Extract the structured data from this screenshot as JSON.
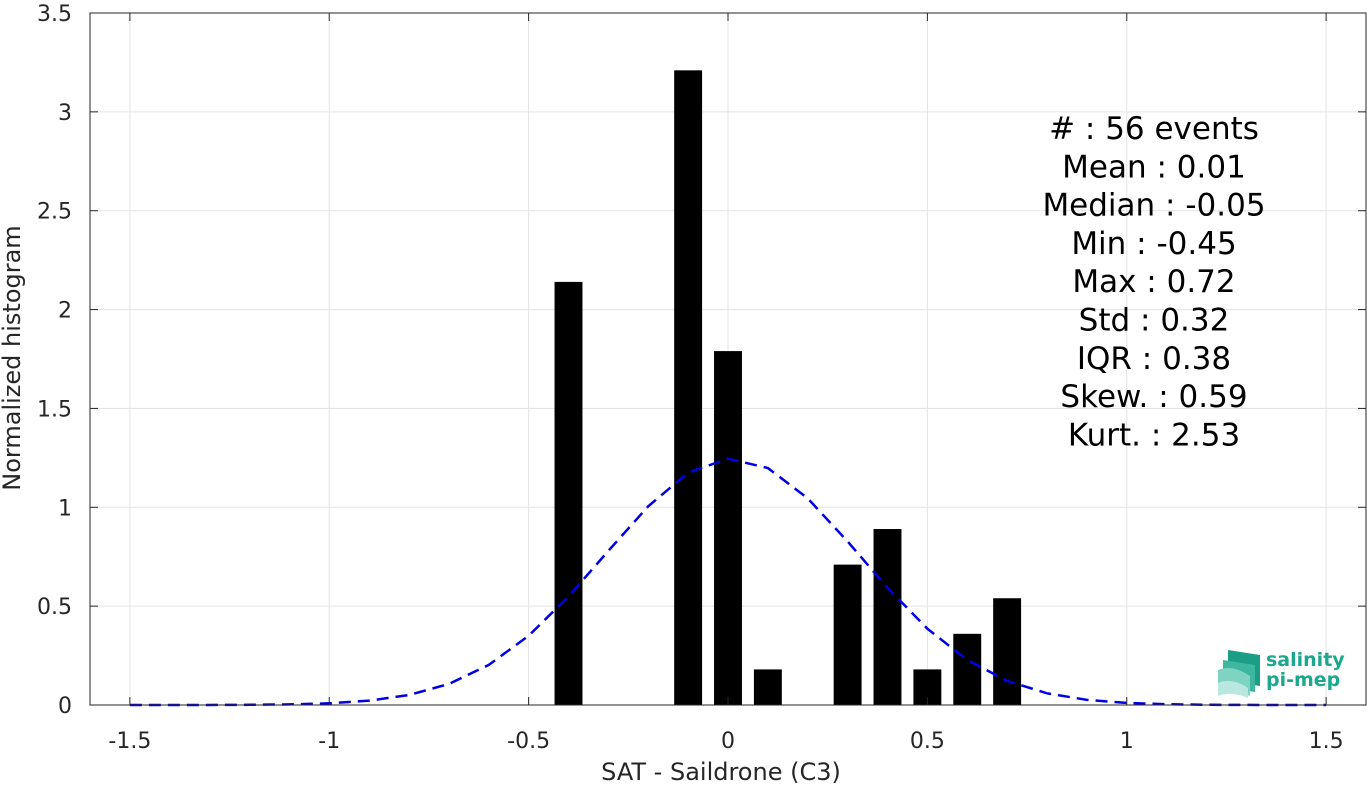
{
  "chart_data": {
    "type": "bar",
    "xlabel": "SAT - Saildrone (C3)",
    "ylabel": "Normalized histogram",
    "xlim": [
      -1.6,
      1.6
    ],
    "ylim": [
      0,
      3.5
    ],
    "xticks": [
      -1.5,
      -1,
      -0.5,
      0,
      0.5,
      1,
      1.5
    ],
    "xtick_labels": [
      "-1.5",
      "-1",
      "-0.5",
      "0",
      "0.5",
      "1",
      "1.5"
    ],
    "yticks": [
      0,
      0.5,
      1,
      1.5,
      2,
      2.5,
      3,
      3.5
    ],
    "ytick_labels": [
      "0",
      "0.5",
      "1",
      "1.5",
      "2",
      "2.5",
      "3",
      "3.5"
    ],
    "grid": true,
    "bar_width": 0.07,
    "bar_color": "#000000",
    "bars": [
      {
        "x": -0.4,
        "y": 2.14
      },
      {
        "x": -0.1,
        "y": 3.21
      },
      {
        "x": 0.0,
        "y": 1.79
      },
      {
        "x": 0.1,
        "y": 0.18
      },
      {
        "x": 0.3,
        "y": 0.71
      },
      {
        "x": 0.4,
        "y": 0.89
      },
      {
        "x": 0.5,
        "y": 0.18
      },
      {
        "x": 0.6,
        "y": 0.36
      },
      {
        "x": 0.7,
        "y": 0.54
      }
    ],
    "fit_curve": {
      "style": "dashed",
      "color": "#0000e6",
      "mean": 0.01,
      "std": 0.32,
      "x_range": [
        -1.5,
        1.5
      ]
    },
    "stats": [
      {
        "label": "#",
        "sep": ":",
        "value": "56 events"
      },
      {
        "label": "Mean",
        "sep": ":",
        "value": "0.01"
      },
      {
        "label": "Median",
        "sep": ":",
        "value": "-0.05"
      },
      {
        "label": "Min",
        "sep": ":",
        "value": "-0.45"
      },
      {
        "label": "Max",
        "sep": ":",
        "value": "0.72"
      },
      {
        "label": "Std",
        "sep": ":",
        "value": "0.32"
      },
      {
        "label": "IQR",
        "sep": ":",
        "value": "0.38"
      },
      {
        "label": "Skew.",
        "sep": ":",
        "value": "0.59"
      },
      {
        "label": "Kurt.",
        "sep": ":",
        "value": "2.53"
      }
    ]
  },
  "logo": {
    "line1": "salinity",
    "line2": "pi-mep",
    "color": "#1aa88e"
  }
}
